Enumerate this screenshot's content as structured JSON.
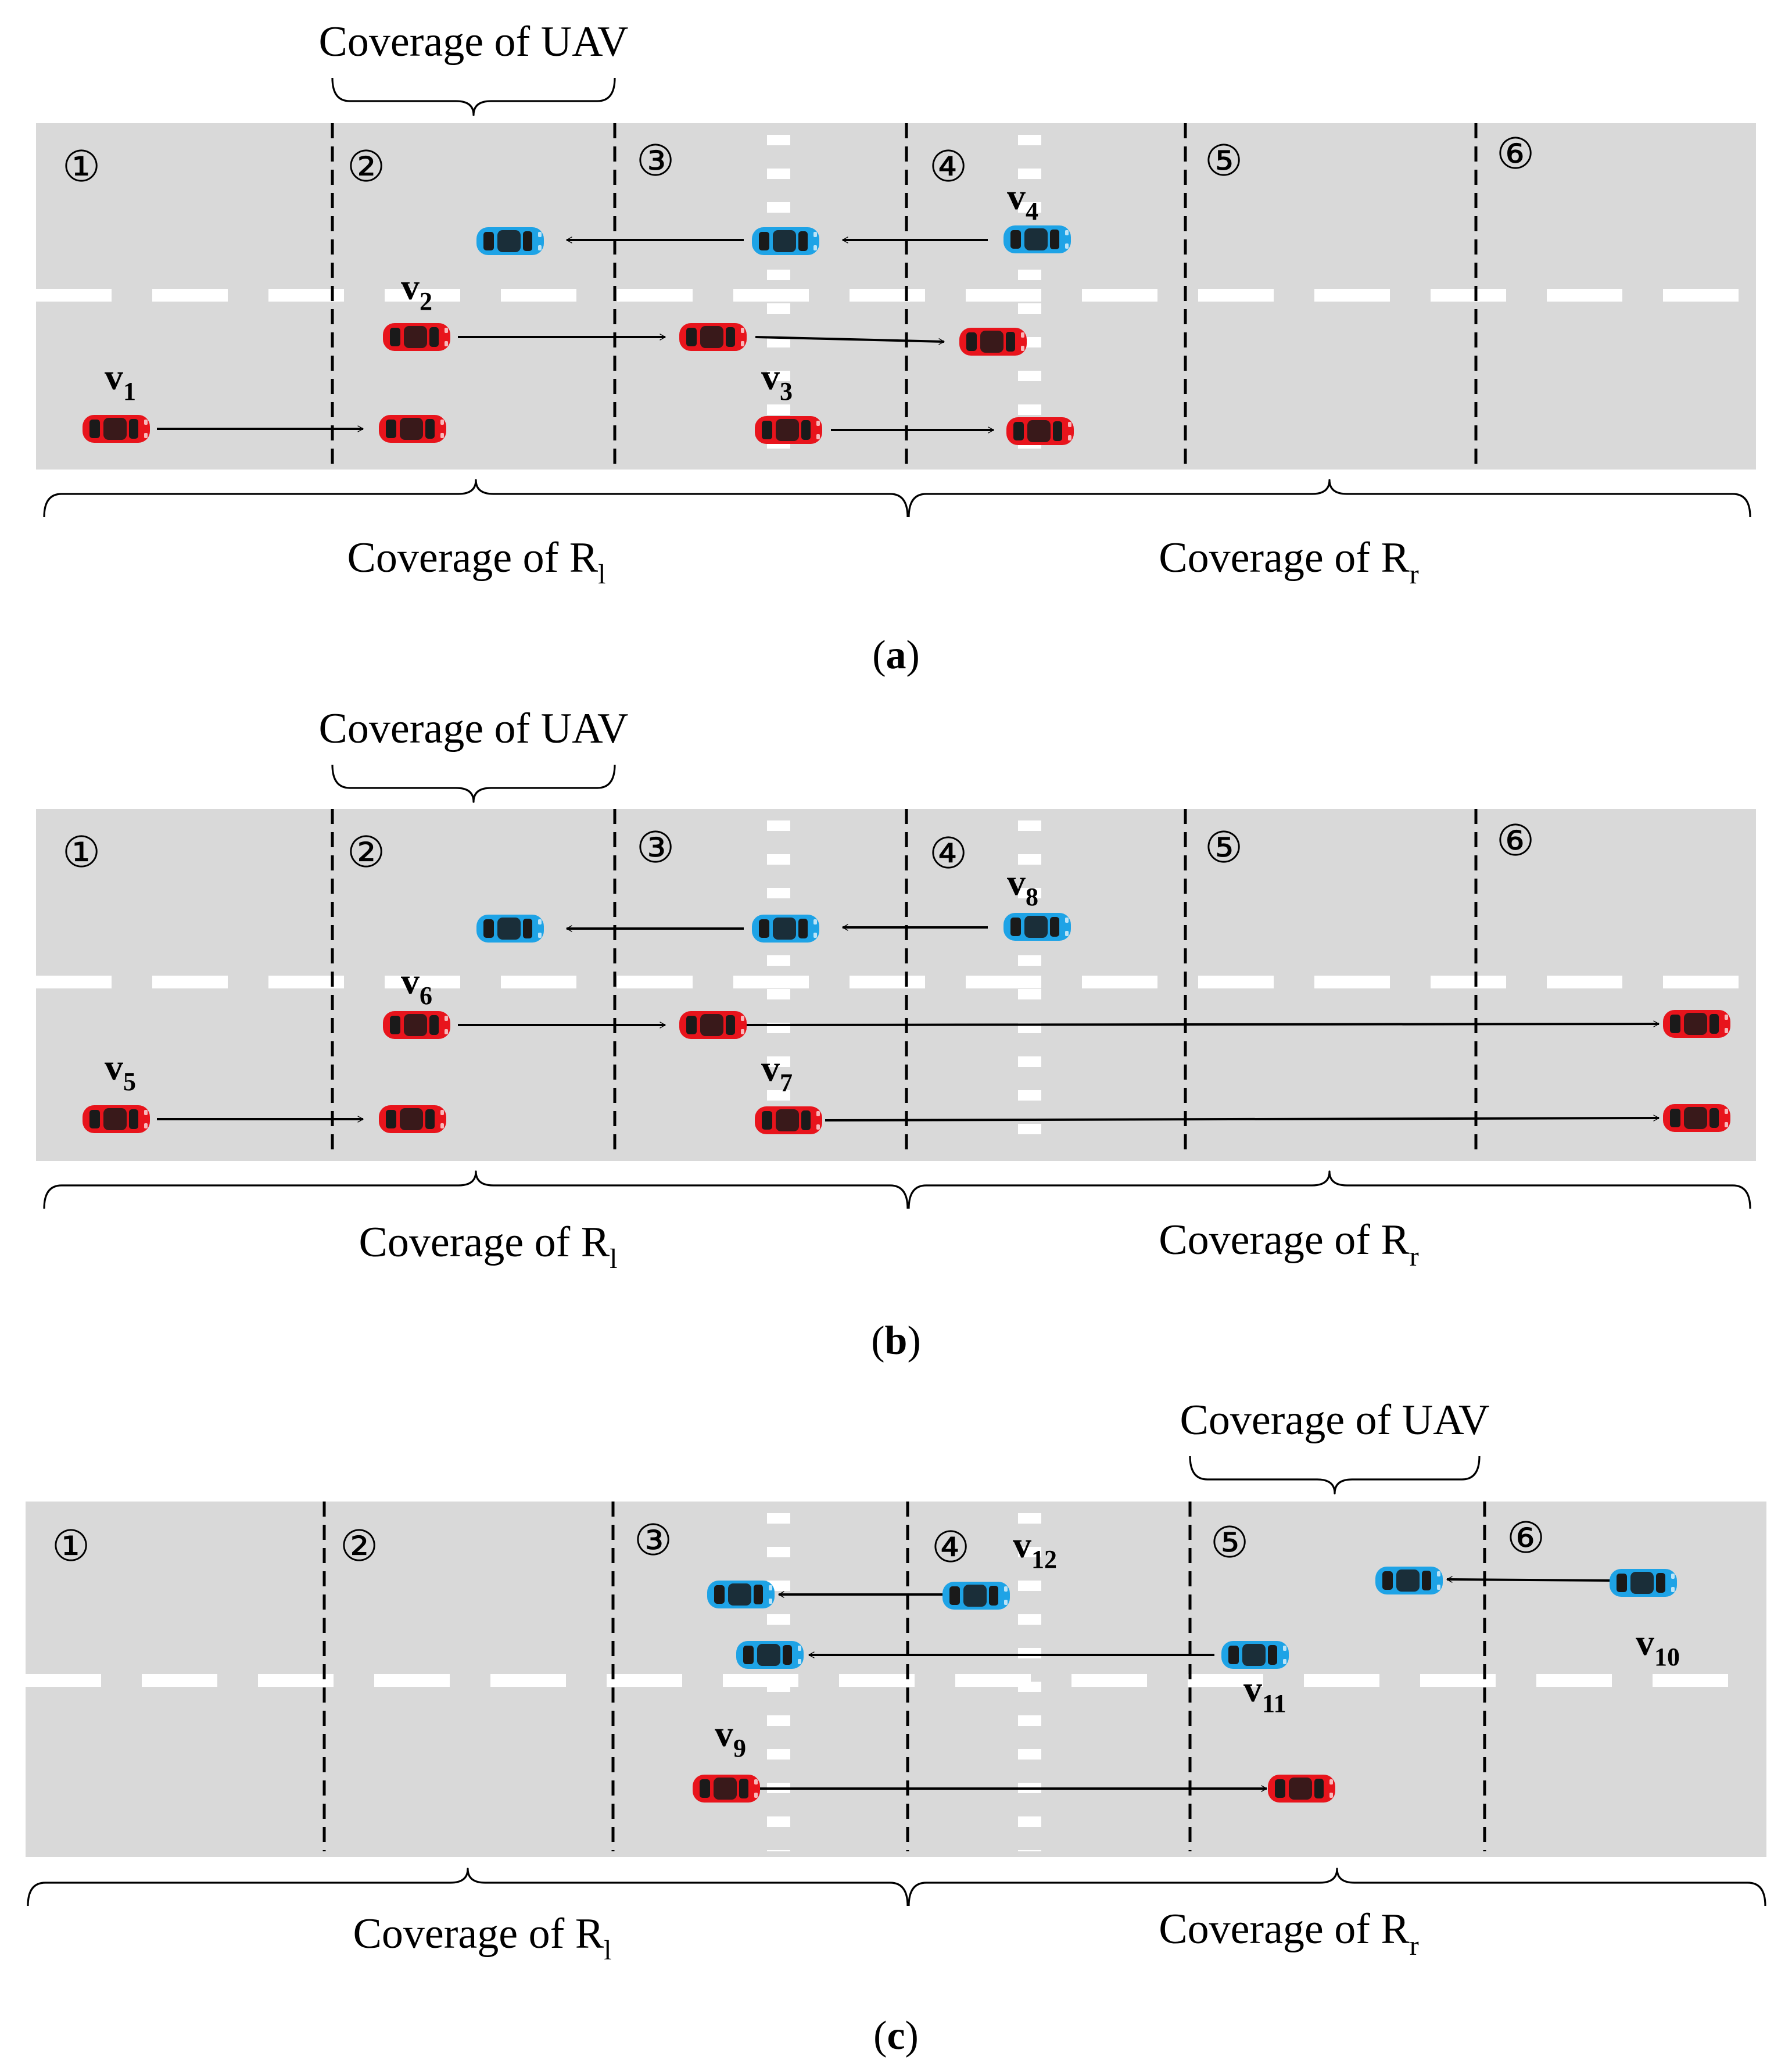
{
  "colors": {
    "road": "#d9d9d9",
    "marking": "#ffffff",
    "red_car": "#e8141c",
    "blue_car": "#1ea3e6",
    "car_dark": "#1a1a1a",
    "line": "#000000"
  },
  "zone_numbers": [
    "①",
    "②",
    "③",
    "④",
    "⑤",
    "⑥"
  ],
  "uav_label": "Coverage of UAV",
  "rsu_left_label": "Coverage of R",
  "rsu_left_sub": "l",
  "rsu_right_label": "Coverage of R",
  "rsu_right_sub": "r",
  "vehicle_prefix": "v",
  "panels": [
    {
      "caption_open": "(",
      "caption_letter": "a",
      "caption_close": ")",
      "vehicles": [
        {
          "num": "1"
        },
        {
          "num": "2"
        },
        {
          "num": "3"
        },
        {
          "num": "4"
        }
      ]
    },
    {
      "caption_open": "(",
      "caption_letter": "b",
      "caption_close": ")",
      "vehicles": [
        {
          "num": "5"
        },
        {
          "num": "6"
        },
        {
          "num": "7"
        },
        {
          "num": "8"
        }
      ]
    },
    {
      "caption_open": "(",
      "caption_letter": "c",
      "caption_close": ")",
      "vehicles": [
        {
          "num": "9"
        },
        {
          "num": "10"
        },
        {
          "num": "11"
        },
        {
          "num": "12"
        }
      ]
    }
  ]
}
